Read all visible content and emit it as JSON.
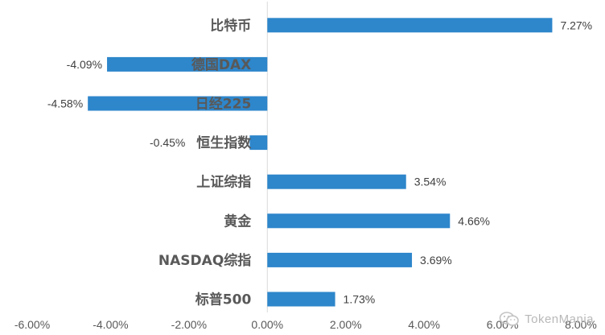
{
  "chart_data": {
    "type": "bar",
    "orientation": "horizontal",
    "categories": [
      "比特币",
      "德国DAX",
      "日经225",
      "恒生指数",
      "上证综指",
      "黄金",
      "NASDAQ综指",
      "标普500"
    ],
    "values": [
      7.27,
      -4.09,
      -4.58,
      -0.45,
      3.54,
      4.66,
      3.69,
      1.73
    ],
    "value_labels": [
      "7.27%",
      "-4.09%",
      "-4.58%",
      "-0.45%",
      "3.54%",
      "4.66%",
      "3.69%",
      "1.73%"
    ],
    "xlim": [
      -6,
      8
    ],
    "x_ticks": [
      "-6.00%",
      "-4.00%",
      "-2.00%",
      "0.00%",
      "2.00%",
      "4.00%",
      "6.00%",
      "8.00%"
    ],
    "bar_color": "#2E86CB",
    "grid": false,
    "title": "",
    "xlabel": "",
    "ylabel": ""
  },
  "watermark": {
    "text": "TokenMania",
    "icon": "wechat-icon"
  }
}
